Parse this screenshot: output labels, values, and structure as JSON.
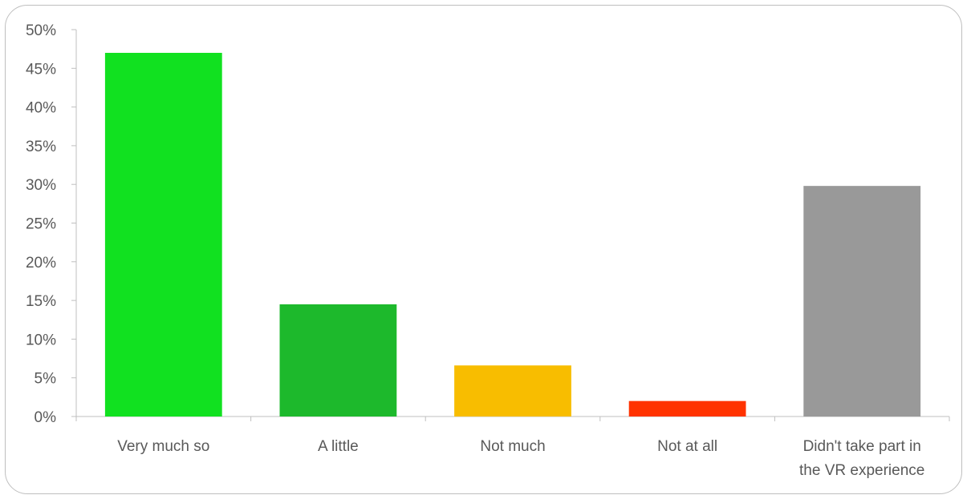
{
  "chart_data": {
    "type": "bar",
    "title": "",
    "xlabel": "",
    "ylabel": "",
    "categories": [
      [
        "Very much so"
      ],
      [
        "A little"
      ],
      [
        "Not much"
      ],
      [
        "Not at all"
      ],
      [
        "Didn't take part in",
        "the VR experience"
      ]
    ],
    "values": [
      47.0,
      14.5,
      6.6,
      2.0,
      29.8
    ],
    "colors": [
      "#11e120",
      "#1db92c",
      "#f8bd00",
      "#ff3300",
      "#999999"
    ],
    "ylim": [
      0,
      50
    ],
    "ytick_step": 5,
    "ytick_suffix": "%",
    "grid": false,
    "legend": "none"
  }
}
